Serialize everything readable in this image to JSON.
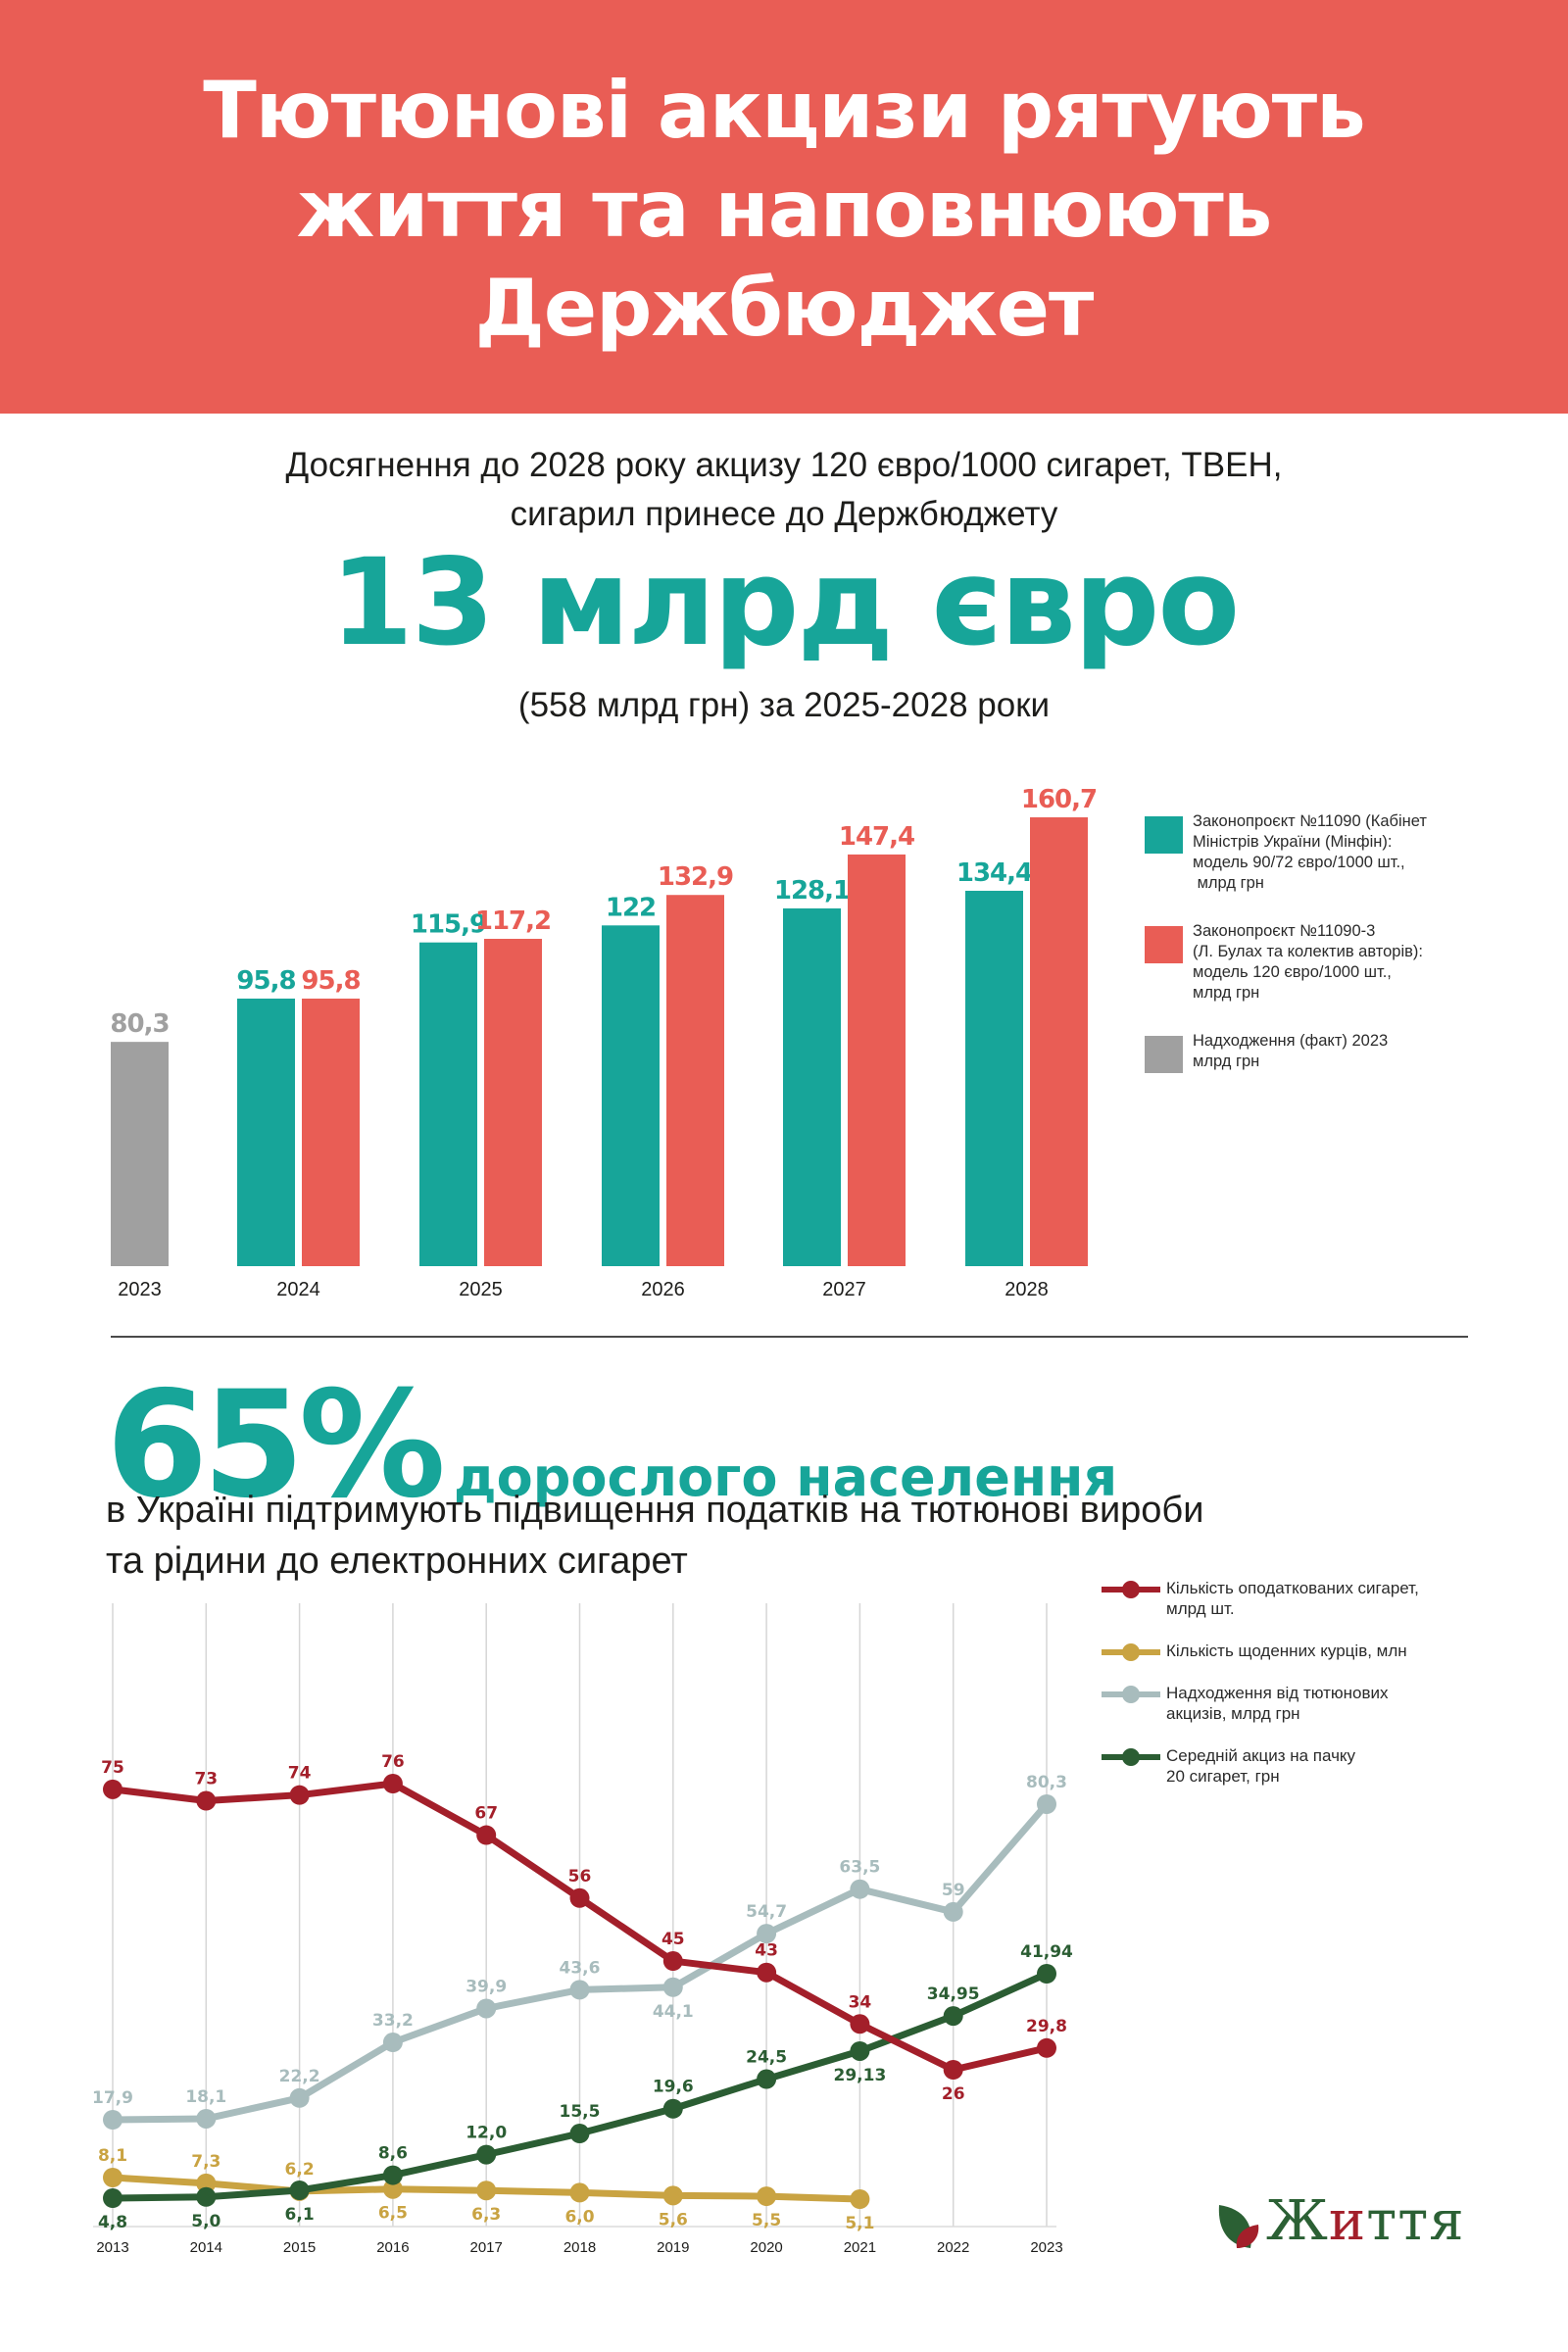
{
  "header": {
    "title_lines": [
      "Тютюнові акцизи рятують",
      "життя та наповнюють",
      "Держбюджет"
    ]
  },
  "intro": {
    "line1": "Досягнення до 2028 року акцизу 120 євро/1000 сигарет, ТВЕН,",
    "line2": "сигарил принесе до Держбюджету",
    "amount": "13 млрд євро",
    "note": "(558 млрд грн) за 2025-2028 роки"
  },
  "colors": {
    "brand_red": "#e95d55",
    "teal": "#17a599",
    "gray": "#a0a0a0",
    "line_red": "#a31f2a",
    "line_yellow": "#c9a342",
    "line_gray": "#a8bcbd",
    "line_green": "#2b5d33"
  },
  "support": {
    "percent": "65%",
    "percent_label": "дорослого населення",
    "line1": "в Україні підтримують підвищення податків на тютюнові вироби",
    "line2": "та рідини до електронних сигарет"
  },
  "logo": {
    "text_before": "Ж",
    "text_accent": "и",
    "text_after": "ття"
  },
  "chart_data": [
    {
      "type": "bar",
      "title": "",
      "xlabel": "",
      "ylabel": "",
      "categories": [
        "2023",
        "2024",
        "2025",
        "2026",
        "2027",
        "2028"
      ],
      "series": [
        {
          "name": "Законопроєкт №11090 (Кабінет Міністрів України (Мінфін): модель 90/72 євро/1000 шт., млрд грн",
          "color": "#17a599",
          "values": [
            null,
            95.8,
            115.9,
            122,
            128.1,
            134.4
          ],
          "labels": [
            "",
            "95,8",
            "115,9",
            "122",
            "128,1",
            "134,4"
          ]
        },
        {
          "name": "Законопроєкт №11090-3 (Л. Булах та колектив авторів): модель 120 євро/1000 шт., млрд грн",
          "color": "#e95d55",
          "values": [
            null,
            95.8,
            117.2,
            132.9,
            147.4,
            160.7
          ],
          "labels": [
            "",
            "95,8",
            "117,2",
            "132,9",
            "147,4",
            "160,7"
          ]
        },
        {
          "name": "Надходження (факт) 2023 млрд грн",
          "color": "#a0a0a0",
          "values": [
            80.3,
            null,
            null,
            null,
            null,
            null
          ],
          "labels": [
            "80,3",
            "",
            "",
            "",
            "",
            ""
          ]
        }
      ],
      "legend": [
        {
          "lines": [
            "Законопроєкт №11090 (Кабінет",
            "Міністрів України (Мінфін):",
            "модель 90/72 євро/1000 шт.,",
            " млрд грн"
          ],
          "color": "#17a599"
        },
        {
          "lines": [
            "Законопроєкт №11090-3",
            "(Л. Булах та колектив авторів):",
            "модель 120 євро/1000 шт.,",
            "млрд грн"
          ],
          "color": "#e95d55"
        },
        {
          "lines": [
            "Надходження (факт) 2023",
            "млрд грн"
          ],
          "color": "#a0a0a0"
        }
      ],
      "legend_position": "right",
      "ylim": [
        0,
        170
      ],
      "grid": false
    },
    {
      "type": "line",
      "title": "",
      "xlabel": "",
      "ylabel": "",
      "x": [
        "2013",
        "2014",
        "2015",
        "2016",
        "2017",
        "2018",
        "2019",
        "2020",
        "2021",
        "2022",
        "2023"
      ],
      "series": [
        {
          "name": "Кількість оподаткованих сигарет, млрд шт.",
          "key": "cigs",
          "color": "#a31f2a",
          "values": [
            75,
            73,
            74,
            76,
            67,
            56,
            45,
            43,
            34,
            26,
            29.8
          ],
          "labels": [
            "75",
            "73",
            "74",
            "76",
            "67",
            "56",
            "45",
            "43",
            "34",
            "26",
            "29,8"
          ],
          "label_pos": [
            "above",
            "above",
            "above",
            "above",
            "above",
            "above",
            "above",
            "above",
            "above",
            "below",
            "above"
          ]
        },
        {
          "name": "Кількість щоденних курців, млн",
          "key": "smokers",
          "color": "#c9a342",
          "values": [
            8.1,
            7.3,
            6.2,
            6.5,
            6.3,
            6.0,
            5.6,
            5.5,
            5.1,
            null,
            null
          ],
          "labels": [
            "8,1",
            "7,3",
            "6,2",
            "6,5",
            "6,3",
            "6,0",
            "5,6",
            "5,5",
            "5,1",
            "",
            ""
          ],
          "label_pos": [
            "above",
            "above",
            "above",
            "below",
            "below",
            "below",
            "below",
            "below",
            "below",
            "",
            ""
          ]
        },
        {
          "name": "Надходження від тютюнових акцизів, млрд грн",
          "key": "revenue",
          "color": "#a8bcbd",
          "values": [
            17.9,
            18.1,
            22.2,
            33.2,
            39.9,
            43.6,
            44.1,
            54.7,
            63.5,
            59,
            80.3
          ],
          "labels": [
            "17,9",
            "18,1",
            "22,2",
            "33,2",
            "39,9",
            "43,6",
            "44,1",
            "54,7",
            "63,5",
            "59",
            "80,3"
          ],
          "label_pos": [
            "above",
            "above",
            "above",
            "above",
            "above",
            "above",
            "below",
            "above",
            "above",
            "above",
            "above"
          ]
        },
        {
          "name": "Середній акциз на пачку 20 сигарет, грн",
          "key": "excise",
          "color": "#2b5d33",
          "values": [
            4.8,
            5.0,
            6.1,
            8.6,
            12.0,
            15.5,
            19.6,
            24.5,
            29.13,
            34.95,
            41.94
          ],
          "labels": [
            "4,8",
            "5,0",
            "6,1",
            "8,6",
            "12,0",
            "15,5",
            "19,6",
            "24,5",
            "29,13",
            "34,95",
            "41,94"
          ],
          "label_pos": [
            "below",
            "below",
            "below",
            "above",
            "above",
            "above",
            "above",
            "above",
            "below",
            "above",
            "above"
          ]
        }
      ],
      "legend": [
        {
          "lines": [
            "Кількість оподаткованих сигарет,",
            "млрд шт."
          ],
          "color": "#a31f2a"
        },
        {
          "lines": [
            "Кількість щоденних курців, млн"
          ],
          "color": "#c9a342"
        },
        {
          "lines": [
            "Надходження від тютюнових",
            "акцизів, млрд грн"
          ],
          "color": "#a8bcbd"
        },
        {
          "lines": [
            "Середній акциз на пачку",
            "20 сигарет, грн"
          ],
          "color": "#2b5d33"
        }
      ],
      "legend_position": "right",
      "grid": true,
      "note": "each series drawn on its own independent scale"
    }
  ]
}
